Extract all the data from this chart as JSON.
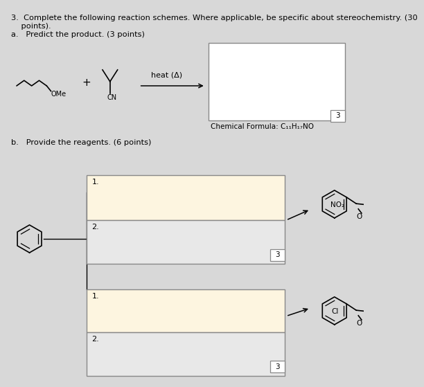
{
  "bg_color": "#d8d8d8",
  "title1": "3.  Complete the following reaction schemes. Where applicable, be specific about stereochemistry. (30",
  "title2": "    points).",
  "part_a": "a.   Predict the product. (3 points)",
  "part_b": "b.   Provide the reagents. (6 points)",
  "heat_text": "heat (Δ)",
  "chem_formula": "Chemical Formula: C₁₁H₁₇NO",
  "answer_box_facecolor": "#ffffff",
  "reagent_box_facecolor": "#fdf5e0",
  "box_edge": "#888888",
  "font_size_title": 8.2,
  "font_size_label": 7.5,
  "font_size_small": 7.0
}
